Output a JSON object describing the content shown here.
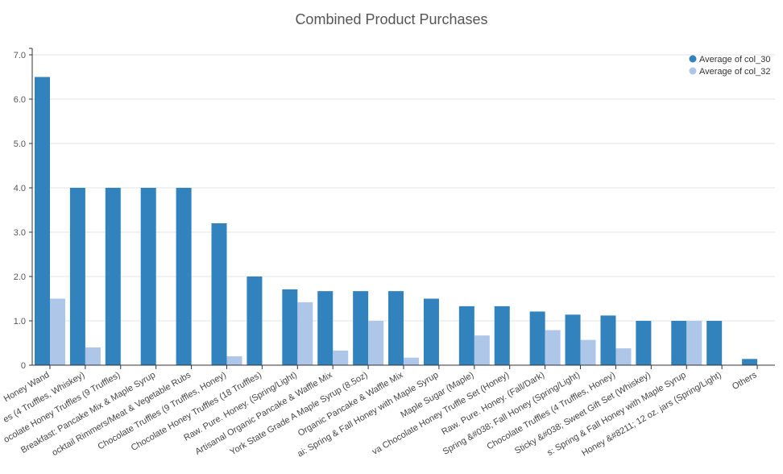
{
  "colors": {
    "series1": "#3182bd",
    "series2": "#aec7e8"
  },
  "chart_data": {
    "type": "bar",
    "title": "Combined Product Purchases",
    "xlabel": "",
    "ylabel": "",
    "ylim": [
      0,
      7
    ],
    "yticks": [
      "0",
      "1.0",
      "2.0",
      "3.0",
      "4.0",
      "5.0",
      "6.0",
      "7.0"
    ],
    "legend_position": "top-right",
    "categories": [
      "Honey Wand",
      "es (4 Truffles, Whiskey)",
      "ocolate Honey Truffles (9 Truffles)",
      "Breakfast: Pancake Mix & Maple Syrup",
      "ocktail Rimmers/Meat & Vegetable Rubs",
      "Chocolate Truffles (9 Truffles, Honey)",
      "Chocolate Honey Truffles (18 Truffles)",
      "Raw. Pure. Honey. (Spring/Light)",
      "Artisanal Organic Pancake & Waffle Mix",
      "York State Grade A Maple Syrup (8.5oz)",
      "Organic Pancake & Waffle Mix",
      "ai: Spring & Fall Honey with Maple Syrup",
      "Maple Sugar (Maple)",
      "va Chocolate Honey Truffle Set (Honey)",
      "Raw. Pure. Honey. (Fall/Dark)",
      "Spring &#038; Fall Honey (Spring/Light)",
      "Chocolate Truffles (4 Truffles, Honey)",
      "Sticky &#038; Sweet Gift Set (Whiskey)",
      "s: Spring & Fall Honey with Maple Syrup",
      "Honey &#8211; 12 oz. jars (Spring/Light)",
      "Others"
    ],
    "series": [
      {
        "name": "Average of col_30",
        "values": [
          6.5,
          4.0,
          4.0,
          4.0,
          4.0,
          3.2,
          2.0,
          1.71,
          1.67,
          1.67,
          1.67,
          1.5,
          1.33,
          1.33,
          1.21,
          1.14,
          1.12,
          1.0,
          1.0,
          1.0,
          0.14
        ]
      },
      {
        "name": "Average of col_32",
        "values": [
          1.5,
          0.4,
          0,
          0,
          0,
          0.2,
          0,
          1.42,
          0.33,
          1.0,
          0.17,
          0,
          0.67,
          0,
          0.79,
          0.57,
          0.38,
          0,
          1.0,
          0,
          0
        ]
      }
    ]
  }
}
